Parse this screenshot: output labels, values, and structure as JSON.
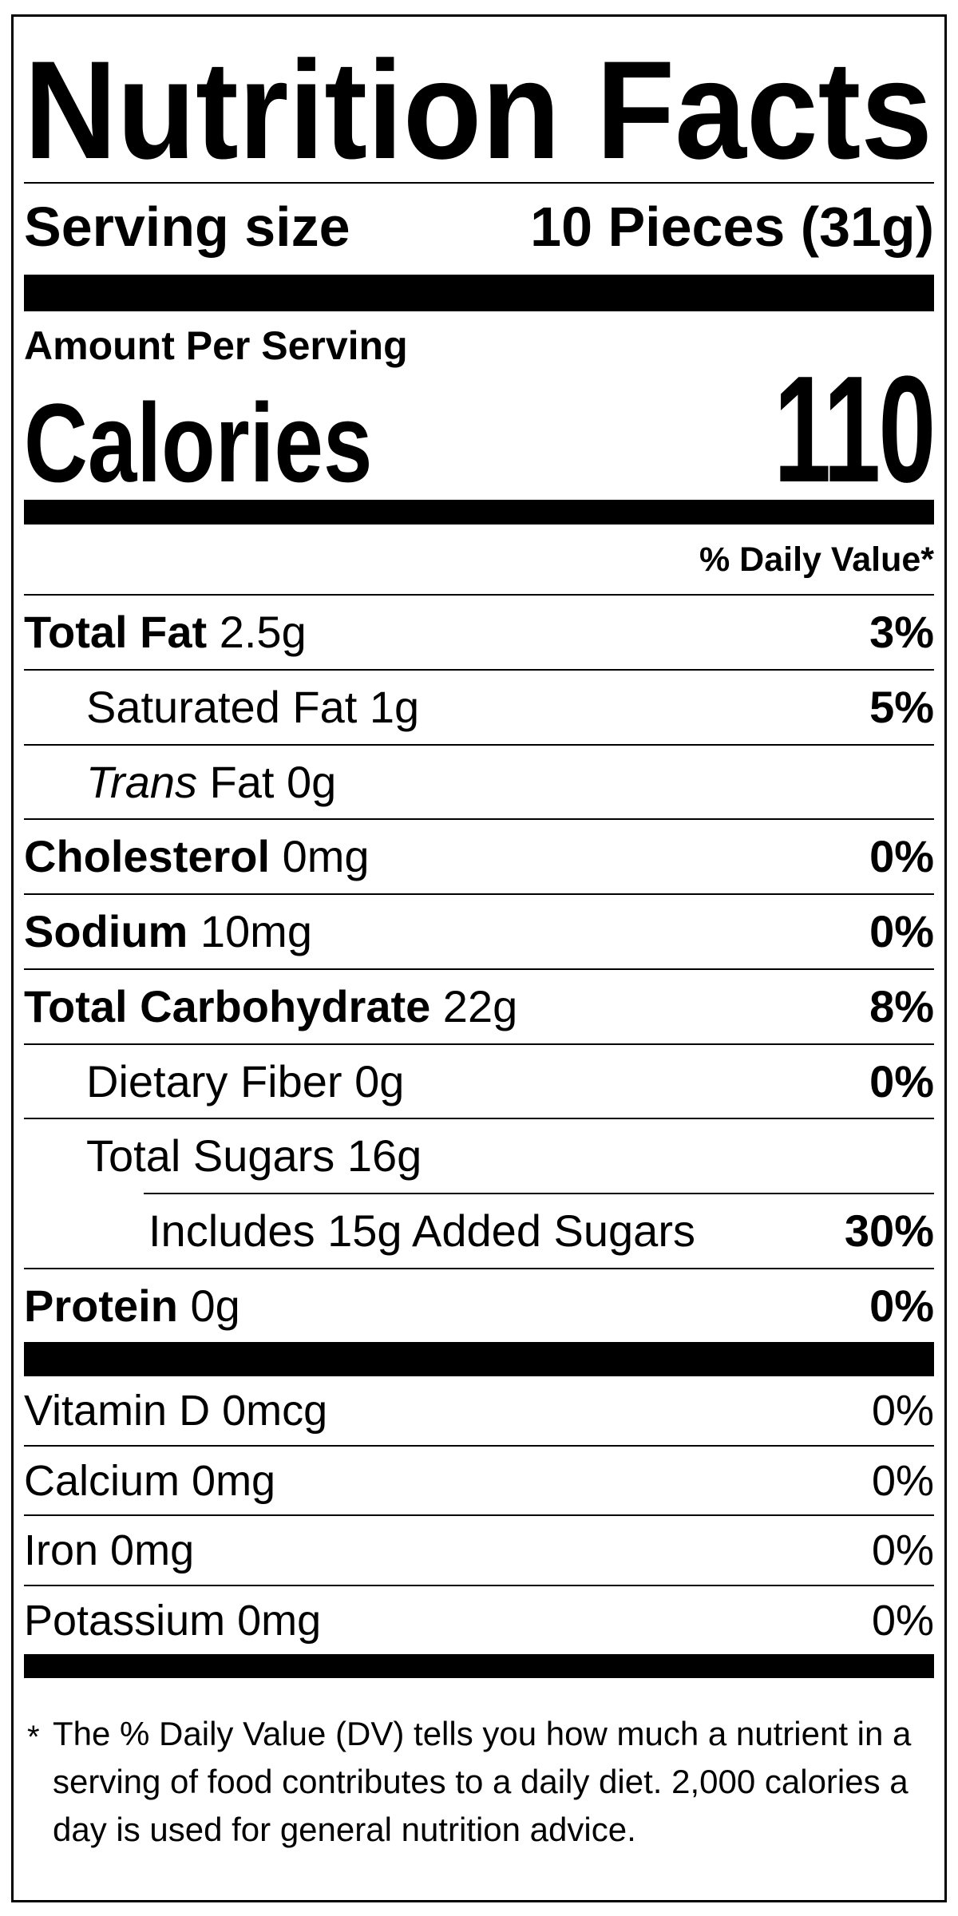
{
  "label": {
    "title": "Nutrition Facts",
    "serving": {
      "label": "Serving size",
      "value": "10 Pieces (31g)"
    },
    "amount_per_serving": "Amount Per Serving",
    "calories": {
      "label": "Calories",
      "value": "110"
    },
    "daily_value_header": "% Daily Value*",
    "nutrients": {
      "total_fat": {
        "name": "Total Fat",
        "amount": " 2.5g",
        "dv": "3%"
      },
      "saturated_fat": {
        "text": "Saturated Fat 1g",
        "dv": "5%"
      },
      "trans_fat": {
        "name_italic": "Trans",
        "amount": " Fat 0g"
      },
      "cholesterol": {
        "name": "Cholesterol",
        "amount": " 0mg",
        "dv": "0%"
      },
      "sodium": {
        "name": "Sodium",
        "amount": " 10mg",
        "dv": "0%"
      },
      "total_carbohydrate": {
        "name": "Total Carbohydrate",
        "amount": " 22g",
        "dv": "8%"
      },
      "dietary_fiber": {
        "text": "Dietary Fiber 0g",
        "dv": "0%"
      },
      "total_sugars": {
        "text": "Total Sugars 16g"
      },
      "added_sugars": {
        "text": "Includes 15g Added Sugars",
        "dv": "30%"
      },
      "protein": {
        "name": "Protein",
        "amount": " 0g",
        "dv": "0%"
      }
    },
    "vitamins": [
      {
        "text": "Vitamin D 0mcg",
        "dv": "0%"
      },
      {
        "text": "Calcium 0mg",
        "dv": "0%"
      },
      {
        "text": "Iron 0mg",
        "dv": "0%"
      },
      {
        "text": "Potassium 0mg",
        "dv": "0%"
      }
    ],
    "footnote": {
      "marker": "*",
      "text": "The % Daily Value (DV) tells you how much a nutrient in a serving of food contributes to a daily diet. 2,000 calories a day is used for general nutrition advice."
    },
    "colors": {
      "text": "#000000",
      "background": "#ffffff"
    }
  }
}
